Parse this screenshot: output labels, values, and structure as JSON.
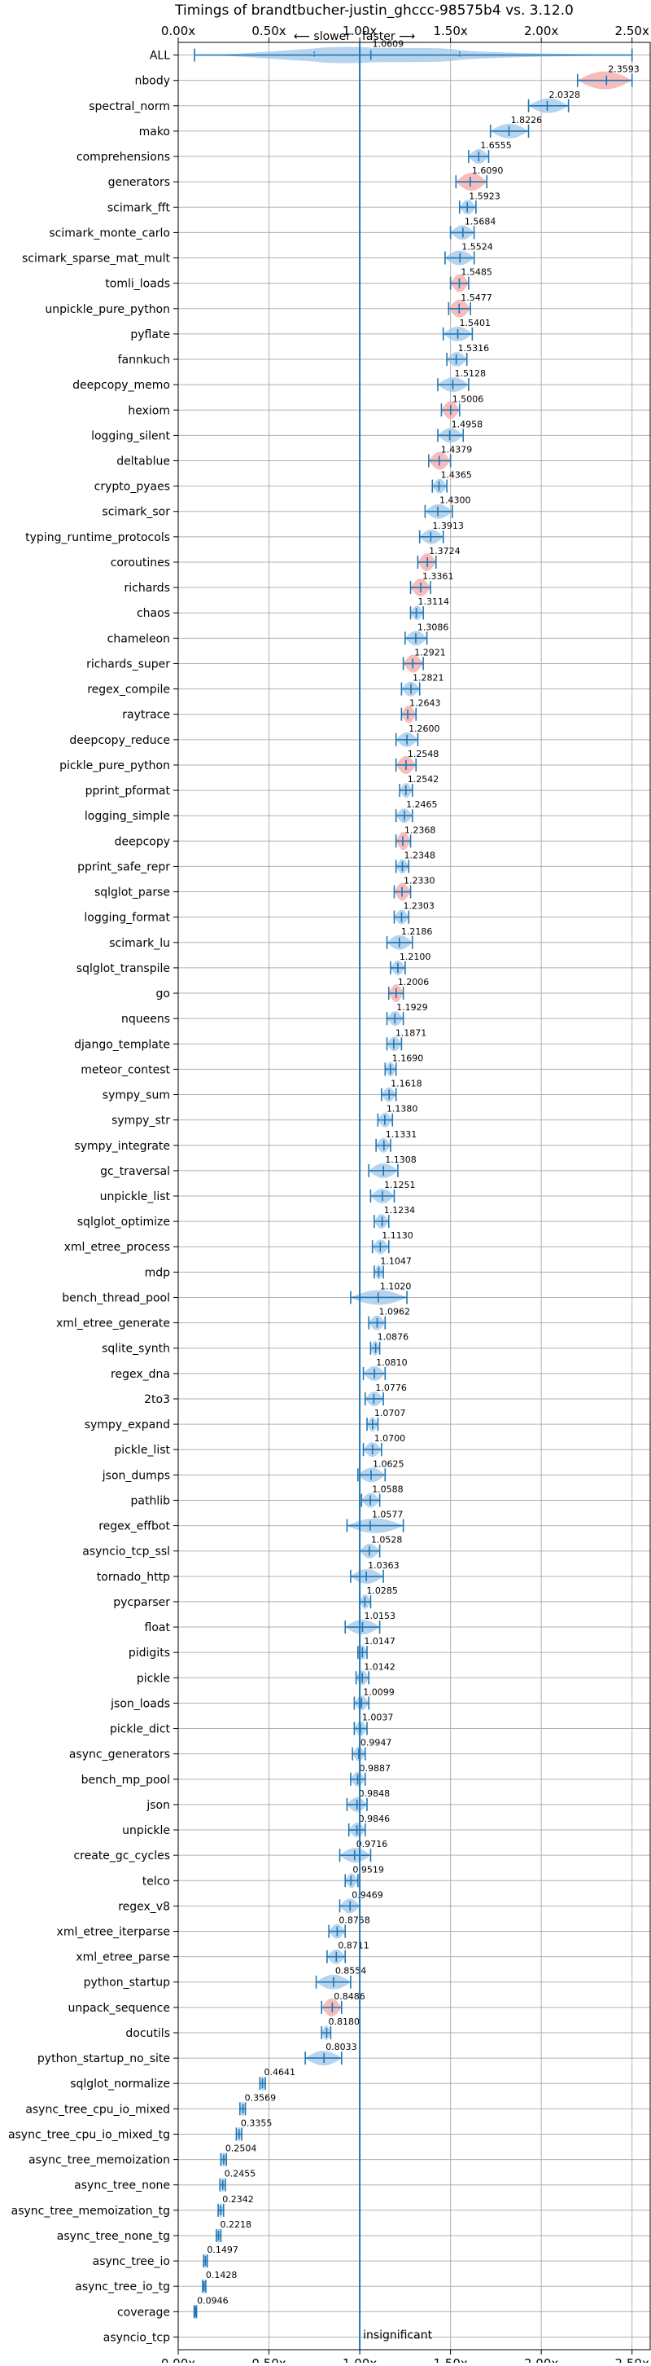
{
  "chart_data": {
    "type": "violin",
    "title": "Timings of brandtbucher-justin_ghccc-98575b4 vs. 3.12.0",
    "direction_slower": "⟵ slower",
    "direction_faster": "faster ⟶",
    "x_tick_labels": [
      "0.00x",
      "0.50x",
      "1.00x",
      "1.50x",
      "2.00x",
      "2.50x"
    ],
    "x_ticks": [
      0,
      0.5,
      1.0,
      1.5,
      2.0,
      2.5
    ],
    "xlim": [
      0,
      2.6
    ],
    "reference_line": 1.0,
    "grid": true,
    "benchmarks": [
      {
        "name": "ALL",
        "mean": 1.0609,
        "label": "1.0609",
        "min": 0.09,
        "max": 2.5,
        "q1": 0.75,
        "q3": 1.55,
        "kind": "all"
      },
      {
        "name": "nbody",
        "mean": 2.3593,
        "label": "2.3593",
        "min": 2.2,
        "max": 2.5,
        "kind": "regress"
      },
      {
        "name": "spectral_norm",
        "mean": 2.0328,
        "label": "2.0328",
        "min": 1.93,
        "max": 2.15,
        "kind": "normal"
      },
      {
        "name": "mako",
        "mean": 1.8226,
        "label": "1.8226",
        "min": 1.72,
        "max": 1.93,
        "kind": "normal"
      },
      {
        "name": "comprehensions",
        "mean": 1.6555,
        "label": "1.6555",
        "min": 1.6,
        "max": 1.71,
        "kind": "normal"
      },
      {
        "name": "generators",
        "mean": 1.609,
        "label": "1.6090",
        "min": 1.53,
        "max": 1.7,
        "kind": "regress"
      },
      {
        "name": "scimark_fft",
        "mean": 1.5923,
        "label": "1.5923",
        "min": 1.55,
        "max": 1.64,
        "kind": "normal"
      },
      {
        "name": "scimark_monte_carlo",
        "mean": 1.5684,
        "label": "1.5684",
        "min": 1.5,
        "max": 1.63,
        "kind": "normal"
      },
      {
        "name": "scimark_sparse_mat_mult",
        "mean": 1.5524,
        "label": "1.5524",
        "min": 1.47,
        "max": 1.63,
        "kind": "normal"
      },
      {
        "name": "tomli_loads",
        "mean": 1.5485,
        "label": "1.5485",
        "min": 1.5,
        "max": 1.6,
        "kind": "regress"
      },
      {
        "name": "unpickle_pure_python",
        "mean": 1.5477,
        "label": "1.5477",
        "min": 1.49,
        "max": 1.61,
        "kind": "regress"
      },
      {
        "name": "pyflate",
        "mean": 1.5401,
        "label": "1.5401",
        "min": 1.46,
        "max": 1.62,
        "kind": "normal"
      },
      {
        "name": "fannkuch",
        "mean": 1.5316,
        "label": "1.5316",
        "min": 1.48,
        "max": 1.59,
        "kind": "normal"
      },
      {
        "name": "deepcopy_memo",
        "mean": 1.5128,
        "label": "1.5128",
        "min": 1.43,
        "max": 1.6,
        "kind": "normal"
      },
      {
        "name": "hexiom",
        "mean": 1.5006,
        "label": "1.5006",
        "min": 1.45,
        "max": 1.55,
        "kind": "regress"
      },
      {
        "name": "logging_silent",
        "mean": 1.4958,
        "label": "1.4958",
        "min": 1.43,
        "max": 1.57,
        "kind": "normal"
      },
      {
        "name": "deltablue",
        "mean": 1.4379,
        "label": "1.4379",
        "min": 1.38,
        "max": 1.5,
        "kind": "regress"
      },
      {
        "name": "crypto_pyaes",
        "mean": 1.4365,
        "label": "1.4365",
        "min": 1.4,
        "max": 1.48,
        "kind": "normal"
      },
      {
        "name": "scimark_sor",
        "mean": 1.43,
        "label": "1.4300",
        "min": 1.36,
        "max": 1.51,
        "kind": "normal"
      },
      {
        "name": "typing_runtime_protocols",
        "mean": 1.3913,
        "label": "1.3913",
        "min": 1.33,
        "max": 1.46,
        "kind": "normal"
      },
      {
        "name": "coroutines",
        "mean": 1.3724,
        "label": "1.3724",
        "min": 1.32,
        "max": 1.42,
        "kind": "regress"
      },
      {
        "name": "richards",
        "mean": 1.3361,
        "label": "1.3361",
        "min": 1.28,
        "max": 1.39,
        "kind": "regress"
      },
      {
        "name": "chaos",
        "mean": 1.3114,
        "label": "1.3114",
        "min": 1.28,
        "max": 1.35,
        "kind": "normal"
      },
      {
        "name": "chameleon",
        "mean": 1.3086,
        "label": "1.3086",
        "min": 1.25,
        "max": 1.37,
        "kind": "normal"
      },
      {
        "name": "richards_super",
        "mean": 1.2921,
        "label": "1.2921",
        "min": 1.24,
        "max": 1.35,
        "kind": "regress"
      },
      {
        "name": "regex_compile",
        "mean": 1.2821,
        "label": "1.2821",
        "min": 1.23,
        "max": 1.33,
        "kind": "normal"
      },
      {
        "name": "raytrace",
        "mean": 1.2643,
        "label": "1.2643",
        "min": 1.23,
        "max": 1.31,
        "kind": "regress"
      },
      {
        "name": "deepcopy_reduce",
        "mean": 1.26,
        "label": "1.2600",
        "min": 1.2,
        "max": 1.32,
        "kind": "normal"
      },
      {
        "name": "pickle_pure_python",
        "mean": 1.2548,
        "label": "1.2548",
        "min": 1.2,
        "max": 1.31,
        "kind": "regress"
      },
      {
        "name": "pprint_pformat",
        "mean": 1.2542,
        "label": "1.2542",
        "min": 1.22,
        "max": 1.29,
        "kind": "normal"
      },
      {
        "name": "logging_simple",
        "mean": 1.2465,
        "label": "1.2465",
        "min": 1.2,
        "max": 1.29,
        "kind": "normal"
      },
      {
        "name": "deepcopy",
        "mean": 1.2368,
        "label": "1.2368",
        "min": 1.2,
        "max": 1.28,
        "kind": "regress"
      },
      {
        "name": "pprint_safe_repr",
        "mean": 1.2348,
        "label": "1.2348",
        "min": 1.2,
        "max": 1.27,
        "kind": "normal"
      },
      {
        "name": "sqlglot_parse",
        "mean": 1.233,
        "label": "1.2330",
        "min": 1.19,
        "max": 1.28,
        "kind": "regress"
      },
      {
        "name": "logging_format",
        "mean": 1.2303,
        "label": "1.2303",
        "min": 1.19,
        "max": 1.27,
        "kind": "normal"
      },
      {
        "name": "scimark_lu",
        "mean": 1.2186,
        "label": "1.2186",
        "min": 1.15,
        "max": 1.29,
        "kind": "normal"
      },
      {
        "name": "sqlglot_transpile",
        "mean": 1.21,
        "label": "1.2100",
        "min": 1.17,
        "max": 1.25,
        "kind": "normal"
      },
      {
        "name": "go",
        "mean": 1.2006,
        "label": "1.2006",
        "min": 1.16,
        "max": 1.24,
        "kind": "regress"
      },
      {
        "name": "nqueens",
        "mean": 1.1929,
        "label": "1.1929",
        "min": 1.15,
        "max": 1.24,
        "kind": "normal"
      },
      {
        "name": "django_template",
        "mean": 1.1871,
        "label": "1.1871",
        "min": 1.15,
        "max": 1.23,
        "kind": "normal"
      },
      {
        "name": "meteor_contest",
        "mean": 1.169,
        "label": "1.1690",
        "min": 1.14,
        "max": 1.2,
        "kind": "normal"
      },
      {
        "name": "sympy_sum",
        "mean": 1.1618,
        "label": "1.1618",
        "min": 1.12,
        "max": 1.2,
        "kind": "normal"
      },
      {
        "name": "sympy_str",
        "mean": 1.138,
        "label": "1.1380",
        "min": 1.1,
        "max": 1.18,
        "kind": "normal"
      },
      {
        "name": "sympy_integrate",
        "mean": 1.1331,
        "label": "1.1331",
        "min": 1.09,
        "max": 1.17,
        "kind": "normal"
      },
      {
        "name": "gc_traversal",
        "mean": 1.1308,
        "label": "1.1308",
        "min": 1.05,
        "max": 1.21,
        "kind": "normal"
      },
      {
        "name": "unpickle_list",
        "mean": 1.1251,
        "label": "1.1251",
        "min": 1.06,
        "max": 1.19,
        "kind": "normal"
      },
      {
        "name": "sqlglot_optimize",
        "mean": 1.1234,
        "label": "1.1234",
        "min": 1.08,
        "max": 1.16,
        "kind": "normal"
      },
      {
        "name": "xml_etree_process",
        "mean": 1.113,
        "label": "1.1130",
        "min": 1.07,
        "max": 1.16,
        "kind": "normal"
      },
      {
        "name": "mdp",
        "mean": 1.1047,
        "label": "1.1047",
        "min": 1.08,
        "max": 1.13,
        "kind": "normal"
      },
      {
        "name": "bench_thread_pool",
        "mean": 1.102,
        "label": "1.1020",
        "min": 0.95,
        "max": 1.26,
        "kind": "normal"
      },
      {
        "name": "xml_etree_generate",
        "mean": 1.0962,
        "label": "1.0962",
        "min": 1.05,
        "max": 1.14,
        "kind": "normal"
      },
      {
        "name": "sqlite_synth",
        "mean": 1.0876,
        "label": "1.0876",
        "min": 1.06,
        "max": 1.11,
        "kind": "normal"
      },
      {
        "name": "regex_dna",
        "mean": 1.081,
        "label": "1.0810",
        "min": 1.02,
        "max": 1.14,
        "kind": "normal"
      },
      {
        "name": "2to3",
        "mean": 1.0776,
        "label": "1.0776",
        "min": 1.03,
        "max": 1.13,
        "kind": "normal"
      },
      {
        "name": "sympy_expand",
        "mean": 1.0707,
        "label": "1.0707",
        "min": 1.04,
        "max": 1.1,
        "kind": "normal"
      },
      {
        "name": "pickle_list",
        "mean": 1.07,
        "label": "1.0700",
        "min": 1.02,
        "max": 1.12,
        "kind": "normal"
      },
      {
        "name": "json_dumps",
        "mean": 1.0625,
        "label": "1.0625",
        "min": 0.99,
        "max": 1.14,
        "kind": "normal"
      },
      {
        "name": "pathlib",
        "mean": 1.0588,
        "label": "1.0588",
        "min": 1.01,
        "max": 1.11,
        "kind": "normal"
      },
      {
        "name": "regex_effbot",
        "mean": 1.0577,
        "label": "1.0577",
        "min": 0.93,
        "max": 1.24,
        "kind": "normal"
      },
      {
        "name": "asyncio_tcp_ssl",
        "mean": 1.0528,
        "label": "1.0528",
        "min": 1.0,
        "max": 1.11,
        "kind": "normal"
      },
      {
        "name": "tornado_http",
        "mean": 1.0363,
        "label": "1.0363",
        "min": 0.95,
        "max": 1.13,
        "kind": "normal"
      },
      {
        "name": "pycparser",
        "mean": 1.0285,
        "label": "1.0285",
        "min": 1.0,
        "max": 1.06,
        "kind": "normal"
      },
      {
        "name": "float",
        "mean": 1.0153,
        "label": "1.0153",
        "min": 0.92,
        "max": 1.11,
        "kind": "normal"
      },
      {
        "name": "pidigits",
        "mean": 1.0147,
        "label": "1.0147",
        "min": 0.99,
        "max": 1.04,
        "kind": "normal"
      },
      {
        "name": "pickle",
        "mean": 1.0142,
        "label": "1.0142",
        "min": 0.98,
        "max": 1.05,
        "kind": "normal"
      },
      {
        "name": "json_loads",
        "mean": 1.0099,
        "label": "1.0099",
        "min": 0.97,
        "max": 1.05,
        "kind": "normal"
      },
      {
        "name": "pickle_dict",
        "mean": 1.0037,
        "label": "1.0037",
        "min": 0.97,
        "max": 1.04,
        "kind": "normal"
      },
      {
        "name": "async_generators",
        "mean": 0.9947,
        "label": "0.9947",
        "min": 0.96,
        "max": 1.03,
        "kind": "normal"
      },
      {
        "name": "bench_mp_pool",
        "mean": 0.9887,
        "label": "0.9887",
        "min": 0.95,
        "max": 1.03,
        "kind": "normal"
      },
      {
        "name": "json",
        "mean": 0.9848,
        "label": "0.9848",
        "min": 0.93,
        "max": 1.04,
        "kind": "normal"
      },
      {
        "name": "unpickle",
        "mean": 0.9846,
        "label": "0.9846",
        "min": 0.94,
        "max": 1.03,
        "kind": "normal"
      },
      {
        "name": "create_gc_cycles",
        "mean": 0.9716,
        "label": "0.9716",
        "min": 0.89,
        "max": 1.06,
        "kind": "normal"
      },
      {
        "name": "telco",
        "mean": 0.9519,
        "label": "0.9519",
        "min": 0.92,
        "max": 0.99,
        "kind": "normal"
      },
      {
        "name": "regex_v8",
        "mean": 0.9469,
        "label": "0.9469",
        "min": 0.89,
        "max": 1.0,
        "kind": "normal"
      },
      {
        "name": "xml_etree_iterparse",
        "mean": 0.8758,
        "label": "0.8758",
        "min": 0.83,
        "max": 0.92,
        "kind": "normal"
      },
      {
        "name": "xml_etree_parse",
        "mean": 0.8711,
        "label": "0.8711",
        "min": 0.82,
        "max": 0.92,
        "kind": "normal"
      },
      {
        "name": "python_startup",
        "mean": 0.8554,
        "label": "0.8554",
        "min": 0.76,
        "max": 0.95,
        "kind": "normal"
      },
      {
        "name": "unpack_sequence",
        "mean": 0.8486,
        "label": "0.8486",
        "min": 0.79,
        "max": 0.9,
        "kind": "regress"
      },
      {
        "name": "docutils",
        "mean": 0.818,
        "label": "0.8180",
        "min": 0.79,
        "max": 0.84,
        "kind": "normal"
      },
      {
        "name": "python_startup_no_site",
        "mean": 0.8033,
        "label": "0.8033",
        "min": 0.7,
        "max": 0.9,
        "kind": "normal"
      },
      {
        "name": "sqlglot_normalize",
        "mean": 0.4641,
        "label": "0.4641",
        "min": 0.45,
        "max": 0.48,
        "kind": "normal"
      },
      {
        "name": "async_tree_cpu_io_mixed",
        "mean": 0.3569,
        "label": "0.3569",
        "min": 0.34,
        "max": 0.37,
        "kind": "normal"
      },
      {
        "name": "async_tree_cpu_io_mixed_tg",
        "mean": 0.3355,
        "label": "0.3355",
        "min": 0.32,
        "max": 0.35,
        "kind": "normal"
      },
      {
        "name": "async_tree_memoization",
        "mean": 0.2504,
        "label": "0.2504",
        "min": 0.235,
        "max": 0.265,
        "kind": "normal"
      },
      {
        "name": "async_tree_none",
        "mean": 0.2455,
        "label": "0.2455",
        "min": 0.23,
        "max": 0.26,
        "kind": "normal"
      },
      {
        "name": "async_tree_memoization_tg",
        "mean": 0.2342,
        "label": "0.2342",
        "min": 0.22,
        "max": 0.25,
        "kind": "normal"
      },
      {
        "name": "async_tree_none_tg",
        "mean": 0.2218,
        "label": "0.2218",
        "min": 0.21,
        "max": 0.235,
        "kind": "normal"
      },
      {
        "name": "async_tree_io",
        "mean": 0.1497,
        "label": "0.1497",
        "min": 0.14,
        "max": 0.16,
        "kind": "normal"
      },
      {
        "name": "async_tree_io_tg",
        "mean": 0.1428,
        "label": "0.1428",
        "min": 0.134,
        "max": 0.152,
        "kind": "normal"
      },
      {
        "name": "coverage",
        "mean": 0.0946,
        "label": "0.0946",
        "min": 0.088,
        "max": 0.101,
        "kind": "normal"
      },
      {
        "name": "asyncio_tcp",
        "kind": "insignificant",
        "note": "insignificant"
      }
    ]
  }
}
